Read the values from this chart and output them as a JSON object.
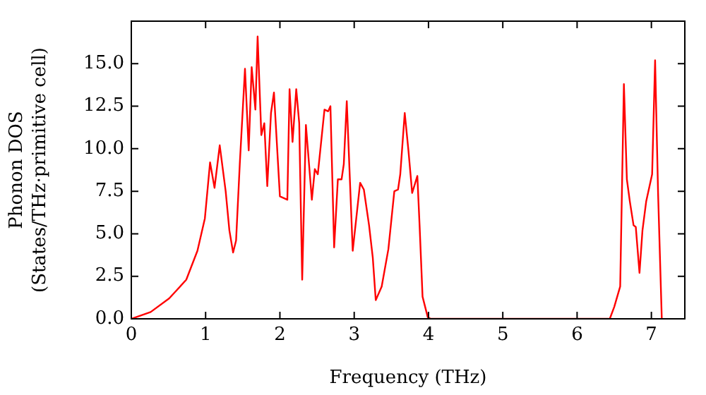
{
  "chart_data": {
    "type": "line",
    "xlabel": "Frequency (THz)",
    "ylabel": "Phonon DOS\n(States/THz·primitive cell)",
    "xlim": [
      0,
      7.45
    ],
    "ylim": [
      0,
      17.5
    ],
    "xticks": [
      0,
      1,
      2,
      3,
      4,
      5,
      6,
      7
    ],
    "yticks": [
      {
        "value": 0,
        "label": "0.0"
      },
      {
        "value": 2.5,
        "label": "2.5"
      },
      {
        "value": 5,
        "label": "5.0"
      },
      {
        "value": 7.5,
        "label": "7.5"
      },
      {
        "value": 10,
        "label": "10.0"
      },
      {
        "value": 12.5,
        "label": "12.5"
      },
      {
        "value": 15,
        "label": "15.0"
      }
    ],
    "grid": false,
    "legend": false,
    "marker": "none",
    "line_style": "solid",
    "series": [
      {
        "color": "#ff0000",
        "x": [
          0,
          0.26,
          0.51,
          0.74,
          0.89,
          0.99,
          1.06,
          1.12,
          1.19,
          1.27,
          1.32,
          1.37,
          1.41,
          1.46,
          1.53,
          1.58,
          1.62,
          1.67,
          1.7,
          1.75,
          1.79,
          1.83,
          1.88,
          1.92,
          2.0,
          2.1,
          2.13,
          2.17,
          2.22,
          2.26,
          2.3,
          2.35,
          2.43,
          2.47,
          2.51,
          2.6,
          2.65,
          2.68,
          2.73,
          2.78,
          2.83,
          2.86,
          2.9,
          2.98,
          3.08,
          3.13,
          3.2,
          3.25,
          3.29,
          3.37,
          3.46,
          3.54,
          3.59,
          3.62,
          3.68,
          3.73,
          3.78,
          3.85,
          3.88,
          3.92,
          3.99,
          4.03,
          6.44,
          6.5,
          6.58,
          6.63,
          6.67,
          6.71,
          6.76,
          6.79,
          6.84,
          6.88,
          6.93,
          7.01,
          7.05,
          7.09,
          7.14
        ],
        "values": [
          0,
          0.4,
          1.2,
          2.3,
          4.0,
          5.9,
          9.2,
          7.7,
          10.2,
          7.5,
          5.2,
          3.9,
          4.6,
          9.1,
          14.7,
          9.9,
          14.8,
          12.3,
          16.6,
          10.8,
          11.5,
          7.8,
          12.1,
          13.3,
          7.2,
          7.0,
          13.5,
          10.4,
          13.5,
          11.5,
          2.3,
          11.4,
          7.0,
          8.8,
          8.5,
          12.3,
          12.2,
          12.5,
          4.2,
          8.2,
          8.2,
          9.1,
          12.8,
          4.0,
          8.0,
          7.6,
          5.5,
          3.6,
          1.1,
          1.9,
          4.1,
          7.5,
          7.6,
          8.5,
          12.1,
          9.9,
          7.4,
          8.4,
          5.5,
          1.3,
          0.1,
          0,
          0,
          0.7,
          1.9,
          13.8,
          8.2,
          6.9,
          5.5,
          5.4,
          2.7,
          5.2,
          6.9,
          8.5,
          15.2,
          7.4,
          0
        ]
      }
    ]
  }
}
